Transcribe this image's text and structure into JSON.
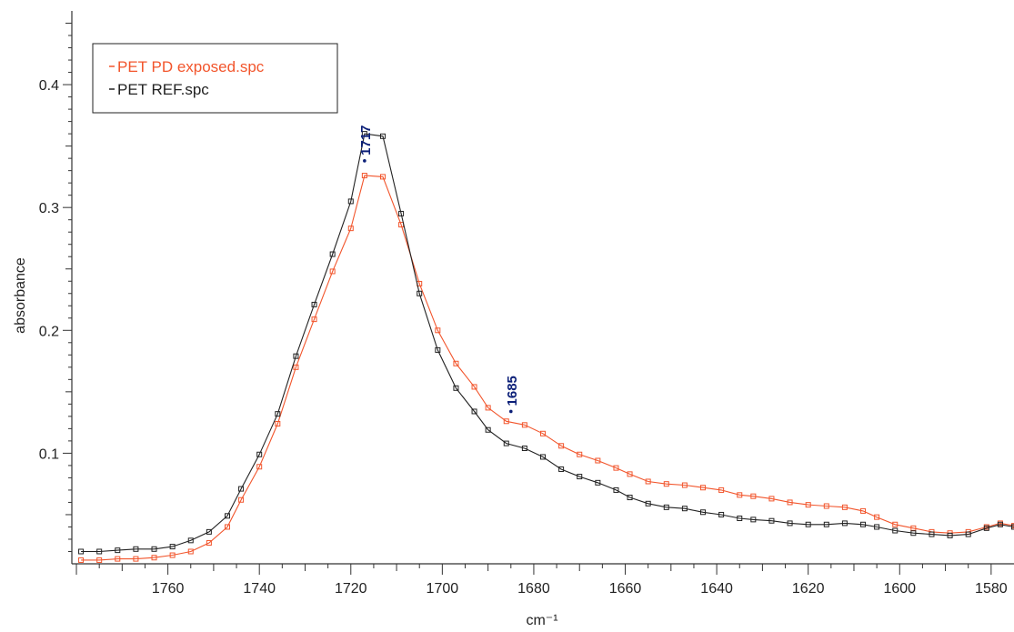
{
  "chart_data": {
    "type": "line",
    "xlabel": "cm⁻¹",
    "ylabel": "absorbance",
    "xlim": [
      1781,
      1575
    ],
    "ylim": [
      0.01,
      0.46
    ],
    "x_reversed": true,
    "x_ticks": [
      1760,
      1740,
      1720,
      1700,
      1680,
      1660,
      1640,
      1620,
      1600,
      1580
    ],
    "x_tick_labels": [
      "1760",
      "1740",
      "1720",
      "1700",
      "1680",
      "1660",
      "1640",
      "1620",
      "1600",
      "1580"
    ],
    "y_ticks": [
      0.1,
      0.2,
      0.3,
      0.4
    ],
    "y_tick_labels": [
      "0.1",
      "0.2",
      "0.3",
      "0.4"
    ],
    "grid": false,
    "legend_position": "top-left",
    "x": [
      1779,
      1775,
      1771,
      1767,
      1763,
      1759,
      1755,
      1751,
      1747,
      1744,
      1740,
      1736,
      1732,
      1728,
      1724,
      1720,
      1717,
      1713,
      1709,
      1705,
      1701,
      1697,
      1693,
      1690,
      1686,
      1682,
      1678,
      1674,
      1670,
      1666,
      1662,
      1659,
      1655,
      1651,
      1647,
      1643,
      1639,
      1635,
      1632,
      1628,
      1624,
      1620,
      1616,
      1612,
      1608,
      1605,
      1601,
      1597,
      1593,
      1589,
      1585,
      1581,
      1578,
      1575
    ],
    "series": [
      {
        "name": "PET PD exposed.spc",
        "color": "#f2552c",
        "values": [
          0.013,
          0.013,
          0.014,
          0.014,
          0.015,
          0.017,
          0.02,
          0.027,
          0.04,
          0.062,
          0.089,
          0.124,
          0.17,
          0.209,
          0.248,
          0.283,
          0.326,
          0.325,
          0.286,
          0.238,
          0.2,
          0.173,
          0.154,
          0.137,
          0.126,
          0.123,
          0.116,
          0.106,
          0.099,
          0.094,
          0.088,
          0.083,
          0.077,
          0.075,
          0.074,
          0.072,
          0.07,
          0.066,
          0.065,
          0.063,
          0.06,
          0.058,
          0.057,
          0.056,
          0.053,
          0.048,
          0.042,
          0.039,
          0.036,
          0.035,
          0.036,
          0.04,
          0.043,
          0.041
        ]
      },
      {
        "name": "PET REF.spc",
        "color": "#222222",
        "values": [
          0.02,
          0.02,
          0.021,
          0.022,
          0.022,
          0.024,
          0.029,
          0.036,
          0.049,
          0.071,
          0.099,
          0.132,
          0.179,
          0.221,
          0.262,
          0.305,
          0.36,
          0.358,
          0.295,
          0.23,
          0.184,
          0.153,
          0.134,
          0.119,
          0.108,
          0.104,
          0.097,
          0.087,
          0.081,
          0.076,
          0.07,
          0.064,
          0.059,
          0.056,
          0.055,
          0.052,
          0.05,
          0.047,
          0.046,
          0.045,
          0.043,
          0.042,
          0.042,
          0.043,
          0.042,
          0.04,
          0.037,
          0.035,
          0.034,
          0.033,
          0.034,
          0.039,
          0.042,
          0.04
        ]
      }
    ],
    "annotations": [
      {
        "label": "1717",
        "x": 1717,
        "y": 0.338
      },
      {
        "label": "1685",
        "x": 1685,
        "y": 0.134
      }
    ]
  }
}
